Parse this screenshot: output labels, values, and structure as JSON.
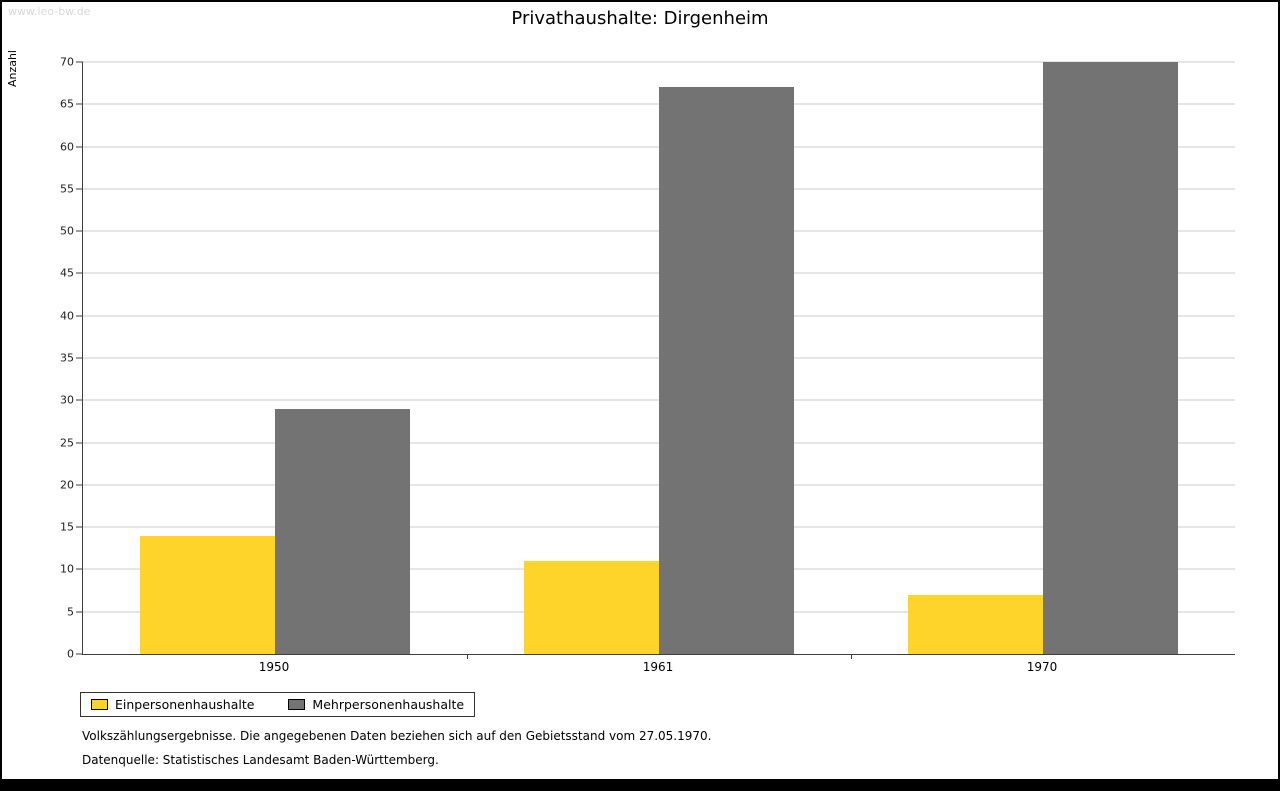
{
  "watermark": "www.leo-bw.de",
  "chart_data": {
    "type": "bar",
    "title": "Privathaushalte: Dirgenheim",
    "ylabel": "Anzahl",
    "categories": [
      "1950",
      "1961",
      "1970"
    ],
    "series": [
      {
        "name": "Einpersonenhaushalte",
        "color": "#ffd42a",
        "values": [
          14,
          11,
          7
        ]
      },
      {
        "name": "Mehrpersonenhaushalte",
        "color": "#737373",
        "values": [
          29,
          67,
          70
        ]
      }
    ],
    "ylim": [
      0,
      70
    ],
    "ytick_step": 5,
    "grid": true,
    "legend_position": "bottom-left"
  },
  "footer": {
    "note": "Volkszählungsergebnisse. Die angegebenen Daten beziehen sich auf den Gebietsstand vom 27.05.1970.",
    "source": "Datenquelle: Statistisches Landesamt Baden-Württemberg."
  }
}
